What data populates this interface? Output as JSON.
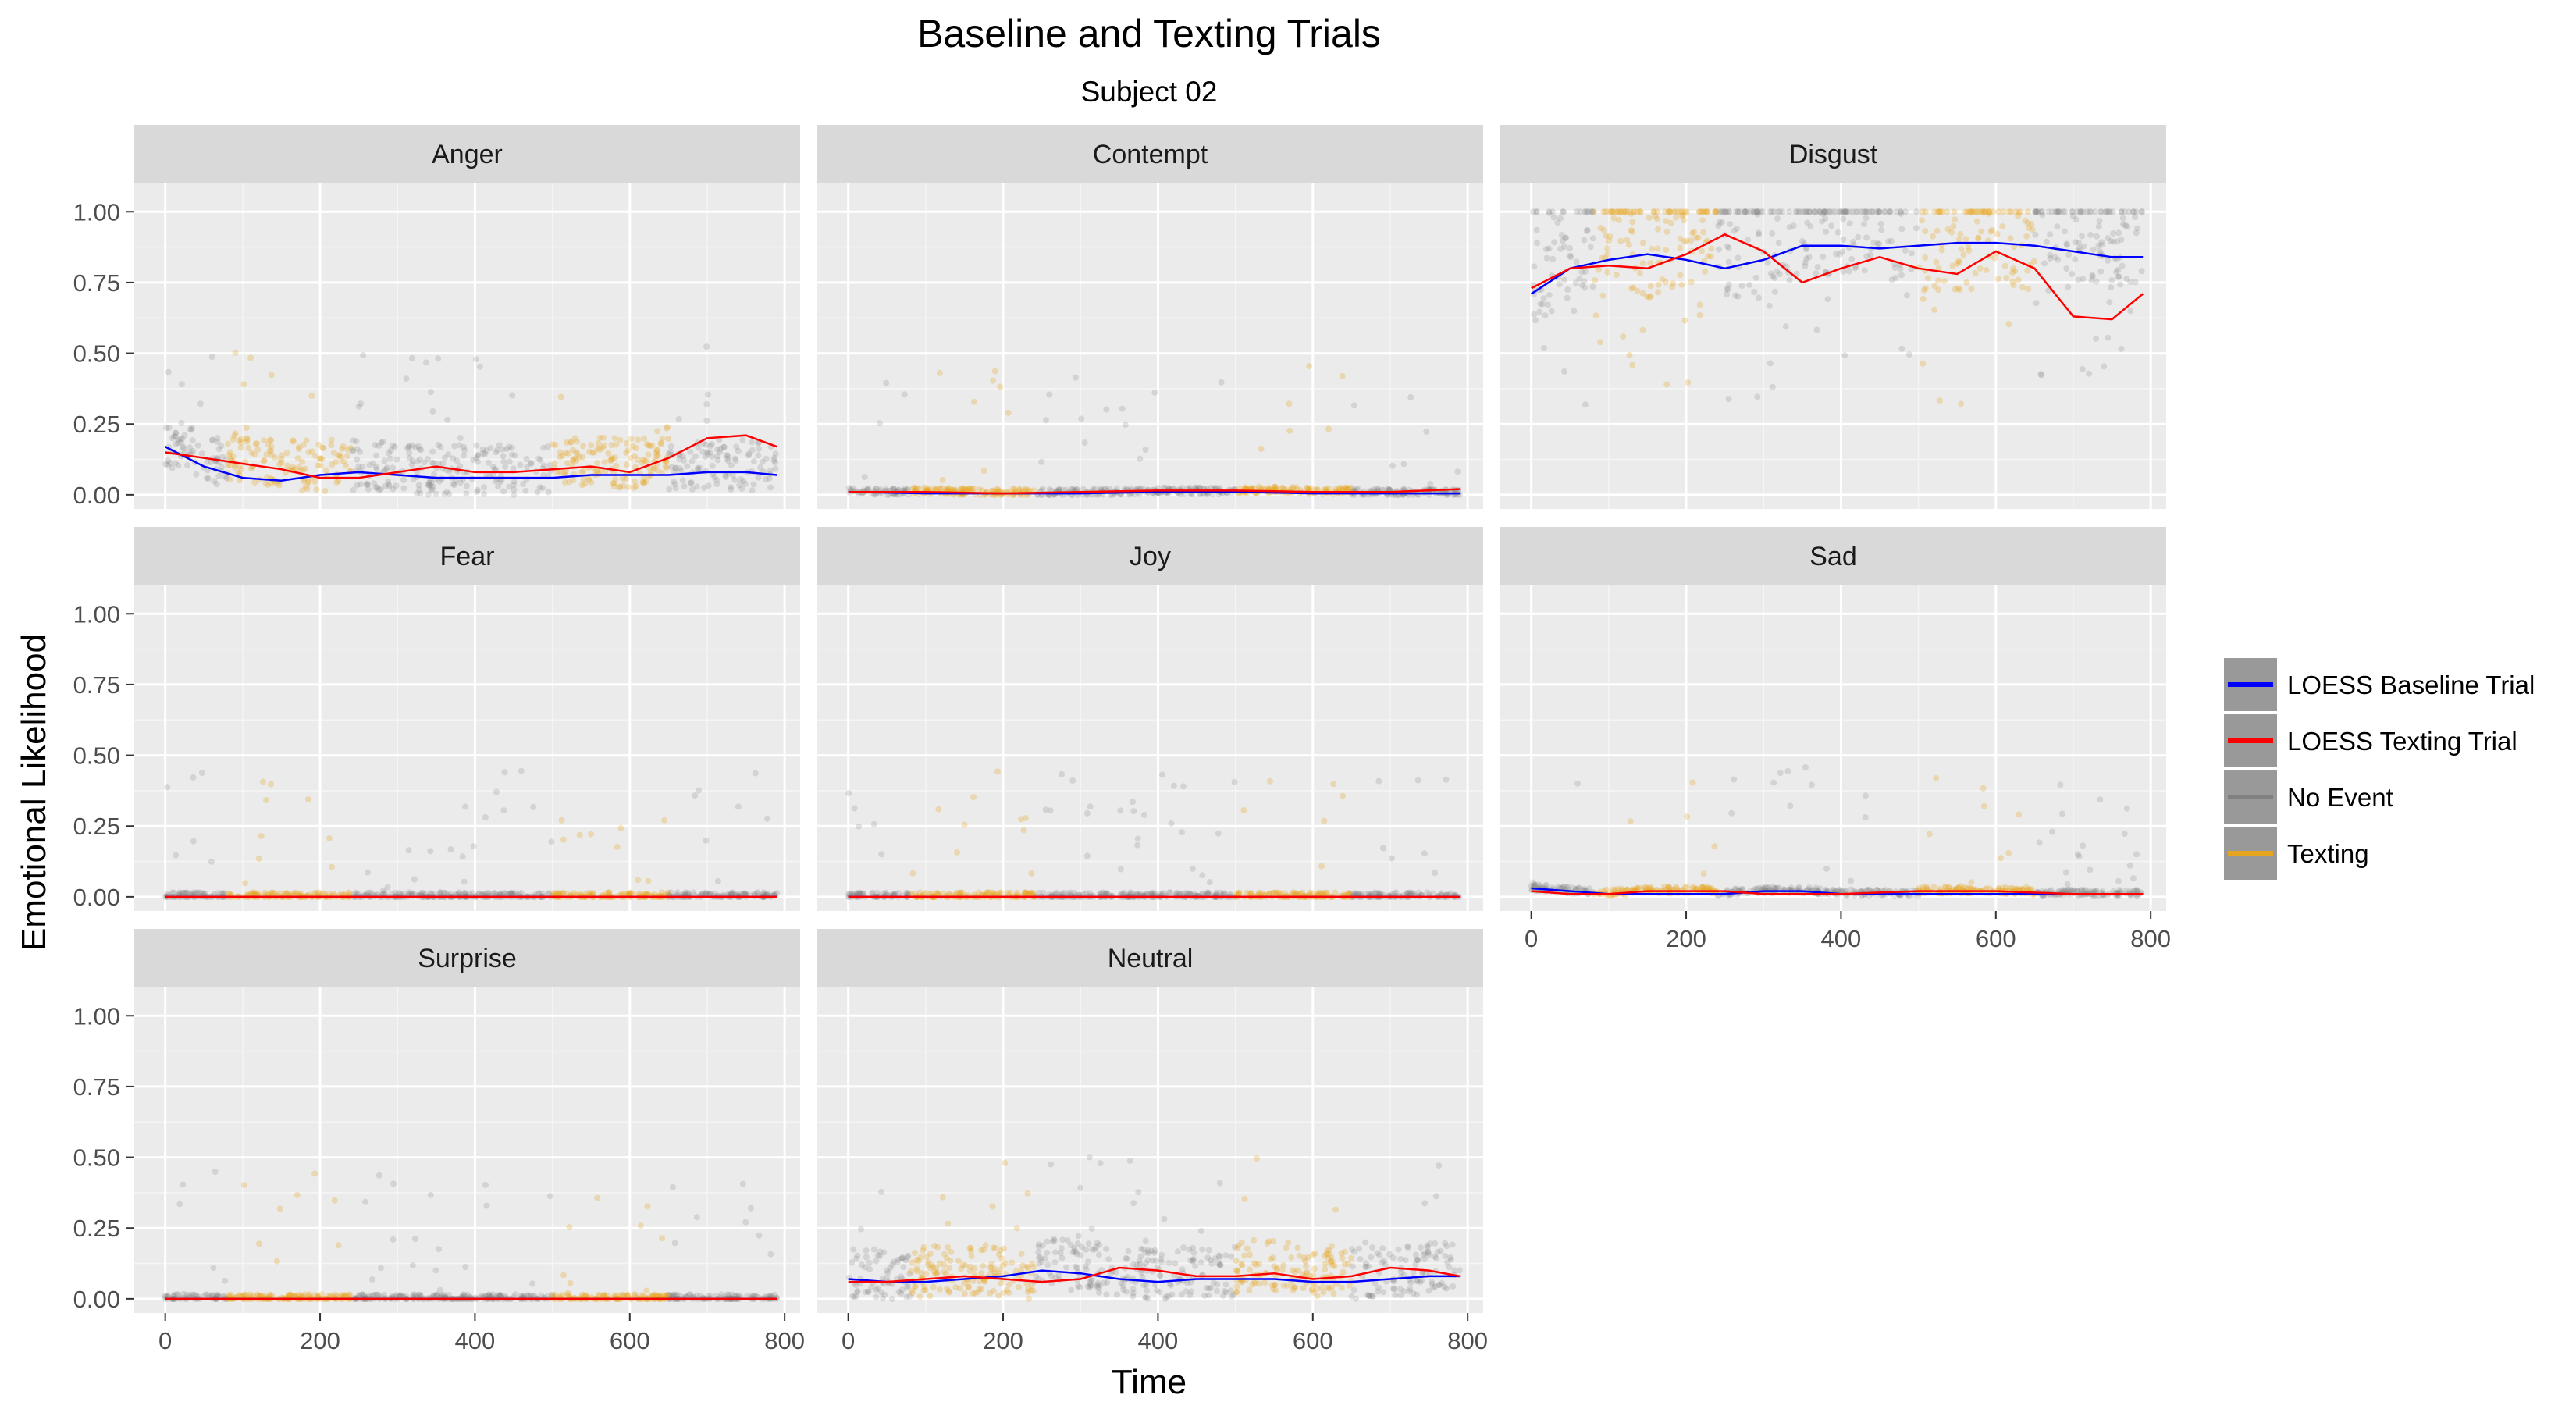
{
  "chart_data": {
    "type": "scatter",
    "title": "Baseline and Texting Trials",
    "subtitle": "Subject 02",
    "xlabel": "Time",
    "ylabel": "Emotional Likelihood",
    "xlim": [
      -40,
      820
    ],
    "ylim": [
      -0.05,
      1.1
    ],
    "x_ticks": [
      "0",
      "200",
      "400",
      "600",
      "800"
    ],
    "y_ticks": [
      "0.00",
      "0.25",
      "0.50",
      "0.75",
      "1.00"
    ],
    "grid": true,
    "legend_position": "right",
    "legend": [
      {
        "label": "LOESS Baseline Trial",
        "color": "#0000ff"
      },
      {
        "label": "LOESS Texting Trial",
        "color": "#ff0000"
      },
      {
        "label": "No Event",
        "color": "#808080"
      },
      {
        "label": "Texting",
        "color": "#e6a521"
      }
    ],
    "texting_intervals": [
      [
        80,
        240
      ],
      [
        500,
        650
      ]
    ],
    "panels": [
      {
        "name": "Anger",
        "baseline_loess": [
          [
            0,
            0.17
          ],
          [
            50,
            0.1
          ],
          [
            100,
            0.06
          ],
          [
            150,
            0.05
          ],
          [
            200,
            0.07
          ],
          [
            250,
            0.08
          ],
          [
            300,
            0.07
          ],
          [
            350,
            0.06
          ],
          [
            400,
            0.06
          ],
          [
            450,
            0.06
          ],
          [
            500,
            0.06
          ],
          [
            550,
            0.07
          ],
          [
            600,
            0.07
          ],
          [
            650,
            0.07
          ],
          [
            700,
            0.08
          ],
          [
            750,
            0.08
          ],
          [
            790,
            0.07
          ]
        ],
        "texting_loess": [
          [
            0,
            0.15
          ],
          [
            50,
            0.13
          ],
          [
            100,
            0.11
          ],
          [
            150,
            0.09
          ],
          [
            200,
            0.06
          ],
          [
            250,
            0.06
          ],
          [
            300,
            0.08
          ],
          [
            350,
            0.1
          ],
          [
            400,
            0.08
          ],
          [
            450,
            0.08
          ],
          [
            500,
            0.09
          ],
          [
            550,
            0.1
          ],
          [
            600,
            0.08
          ],
          [
            650,
            0.13
          ],
          [
            700,
            0.2
          ],
          [
            750,
            0.21
          ],
          [
            790,
            0.17
          ]
        ]
      },
      {
        "name": "Contempt",
        "baseline_loess": [
          [
            0,
            0.01
          ],
          [
            100,
            0.005
          ],
          [
            200,
            0.005
          ],
          [
            300,
            0.005
          ],
          [
            400,
            0.01
          ],
          [
            500,
            0.01
          ],
          [
            600,
            0.005
          ],
          [
            700,
            0.005
          ],
          [
            790,
            0.005
          ]
        ],
        "texting_loess": [
          [
            0,
            0.01
          ],
          [
            100,
            0.01
          ],
          [
            200,
            0.005
          ],
          [
            300,
            0.01
          ],
          [
            400,
            0.015
          ],
          [
            500,
            0.015
          ],
          [
            600,
            0.01
          ],
          [
            700,
            0.01
          ],
          [
            790,
            0.02
          ]
        ]
      },
      {
        "name": "Disgust",
        "baseline_loess": [
          [
            0,
            0.71
          ],
          [
            50,
            0.8
          ],
          [
            100,
            0.83
          ],
          [
            150,
            0.85
          ],
          [
            200,
            0.83
          ],
          [
            250,
            0.8
          ],
          [
            300,
            0.83
          ],
          [
            350,
            0.88
          ],
          [
            400,
            0.88
          ],
          [
            450,
            0.87
          ],
          [
            500,
            0.88
          ],
          [
            550,
            0.89
          ],
          [
            600,
            0.89
          ],
          [
            650,
            0.88
          ],
          [
            700,
            0.86
          ],
          [
            750,
            0.84
          ],
          [
            790,
            0.84
          ]
        ],
        "texting_loess": [
          [
            0,
            0.73
          ],
          [
            50,
            0.8
          ],
          [
            100,
            0.81
          ],
          [
            150,
            0.8
          ],
          [
            200,
            0.85
          ],
          [
            250,
            0.92
          ],
          [
            300,
            0.86
          ],
          [
            350,
            0.75
          ],
          [
            400,
            0.8
          ],
          [
            450,
            0.84
          ],
          [
            500,
            0.8
          ],
          [
            550,
            0.78
          ],
          [
            600,
            0.86
          ],
          [
            650,
            0.8
          ],
          [
            700,
            0.63
          ],
          [
            750,
            0.62
          ],
          [
            790,
            0.71
          ]
        ]
      },
      {
        "name": "Fear",
        "baseline_loess": [
          [
            0,
            0.0
          ],
          [
            400,
            0.0
          ],
          [
            790,
            0.0
          ]
        ],
        "texting_loess": [
          [
            0,
            0.0
          ],
          [
            400,
            0.0
          ],
          [
            790,
            0.0
          ]
        ]
      },
      {
        "name": "Joy",
        "baseline_loess": [
          [
            0,
            0.0
          ],
          [
            400,
            0.0
          ],
          [
            790,
            0.0
          ]
        ],
        "texting_loess": [
          [
            0,
            0.0
          ],
          [
            400,
            0.0
          ],
          [
            790,
            0.0
          ]
        ]
      },
      {
        "name": "Sad",
        "baseline_loess": [
          [
            0,
            0.03
          ],
          [
            50,
            0.02
          ],
          [
            100,
            0.01
          ],
          [
            150,
            0.01
          ],
          [
            200,
            0.01
          ],
          [
            250,
            0.01
          ],
          [
            300,
            0.02
          ],
          [
            350,
            0.02
          ],
          [
            400,
            0.01
          ],
          [
            500,
            0.01
          ],
          [
            600,
            0.01
          ],
          [
            700,
            0.01
          ],
          [
            790,
            0.01
          ]
        ],
        "texting_loess": [
          [
            0,
            0.02
          ],
          [
            50,
            0.01
          ],
          [
            100,
            0.01
          ],
          [
            150,
            0.02
          ],
          [
            200,
            0.02
          ],
          [
            250,
            0.02
          ],
          [
            300,
            0.01
          ],
          [
            350,
            0.01
          ],
          [
            400,
            0.01
          ],
          [
            500,
            0.02
          ],
          [
            600,
            0.02
          ],
          [
            700,
            0.01
          ],
          [
            790,
            0.01
          ]
        ]
      },
      {
        "name": "Surprise",
        "baseline_loess": [
          [
            0,
            0.0
          ],
          [
            400,
            0.0
          ],
          [
            790,
            0.0
          ]
        ],
        "texting_loess": [
          [
            0,
            0.0
          ],
          [
            400,
            0.0
          ],
          [
            790,
            0.0
          ]
        ]
      },
      {
        "name": "Neutral",
        "baseline_loess": [
          [
            0,
            0.07
          ],
          [
            50,
            0.06
          ],
          [
            100,
            0.06
          ],
          [
            150,
            0.07
          ],
          [
            200,
            0.08
          ],
          [
            250,
            0.1
          ],
          [
            300,
            0.09
          ],
          [
            350,
            0.07
          ],
          [
            400,
            0.06
          ],
          [
            450,
            0.07
          ],
          [
            500,
            0.07
          ],
          [
            550,
            0.07
          ],
          [
            600,
            0.06
          ],
          [
            650,
            0.06
          ],
          [
            700,
            0.07
          ],
          [
            750,
            0.08
          ],
          [
            790,
            0.08
          ]
        ],
        "texting_loess": [
          [
            0,
            0.06
          ],
          [
            50,
            0.06
          ],
          [
            100,
            0.07
          ],
          [
            150,
            0.08
          ],
          [
            200,
            0.07
          ],
          [
            250,
            0.06
          ],
          [
            300,
            0.07
          ],
          [
            350,
            0.11
          ],
          [
            400,
            0.1
          ],
          [
            450,
            0.08
          ],
          [
            500,
            0.08
          ],
          [
            550,
            0.09
          ],
          [
            600,
            0.07
          ],
          [
            650,
            0.08
          ],
          [
            700,
            0.11
          ],
          [
            750,
            0.1
          ],
          [
            790,
            0.08
          ]
        ]
      }
    ]
  }
}
